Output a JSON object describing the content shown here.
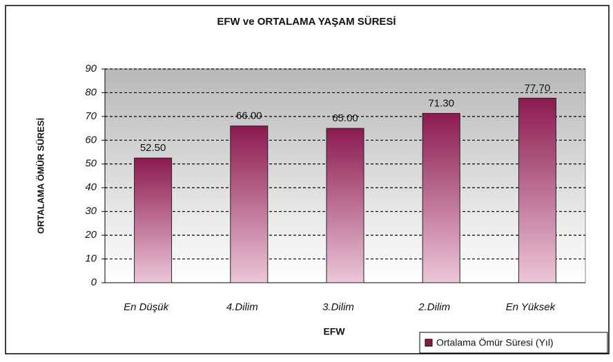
{
  "chart_data": {
    "type": "bar",
    "title": "EFW ve ORTALAMA YAŞAM SÜRESİ",
    "x_label": "EFW",
    "y_label": "ORTALAMA ÖMÜR SÜRESİ",
    "categories": [
      "En Düşük",
      "4.Dilim",
      "3.Dilim",
      "2.Dilim",
      "En Yüksek"
    ],
    "series": [
      {
        "name": "Ortalama Ömür Süresi (Yıl)",
        "color": "#8b1a4f",
        "values": [
          52.5,
          66,
          65,
          71.3,
          77.7
        ],
        "value_labels": [
          "52.50",
          "66.00",
          "65.00",
          "71.30",
          "77.70"
        ]
      }
    ],
    "ylim": [
      0,
      90
    ],
    "yticks": [
      0,
      10,
      20,
      30,
      40,
      50,
      60,
      70,
      80,
      90
    ],
    "grid": true,
    "legend": "bottom-right"
  }
}
